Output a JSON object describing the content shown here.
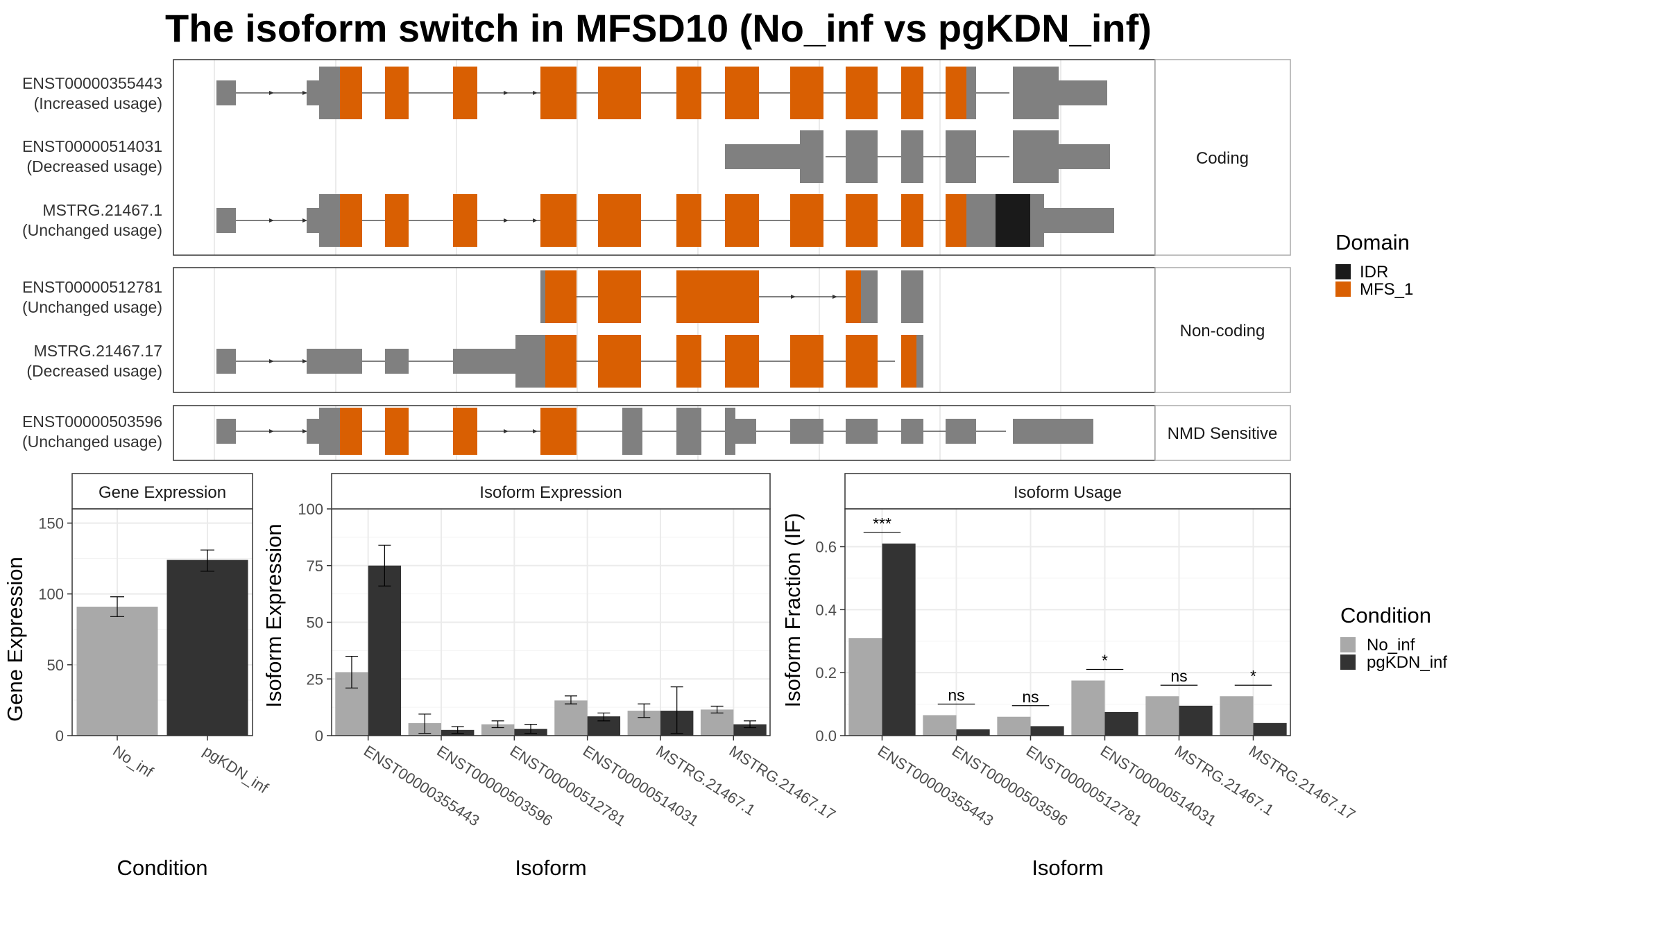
{
  "title": "The isoform switch in MFSD10 (No_inf vs pgKDN_inf)",
  "colors": {
    "exon": "#808080",
    "mfs": "#d95f02",
    "idr": "#1a1a1a",
    "no_inf": "#a9a9a9",
    "pgkdn": "#333333",
    "frame": "#333333",
    "grid": "#ebebeb",
    "strip_bg": "#ffffff"
  },
  "structure": {
    "groups": [
      "Coding",
      "Non-coding",
      "NMD Sensitive"
    ],
    "isoforms": [
      {
        "id": "ENST00000355443",
        "usage": "(Increased usage)",
        "group": 0
      },
      {
        "id": "ENST00000514031",
        "usage": "(Decreased usage)",
        "group": 0
      },
      {
        "id": "MSTRG.21467.1",
        "usage": "(Unchanged usage)",
        "group": 0
      },
      {
        "id": "ENST00000512781",
        "usage": "(Unchanged usage)",
        "group": 1
      },
      {
        "id": "MSTRG.21467.17",
        "usage": "(Decreased usage)",
        "group": 1
      },
      {
        "id": "ENST00000503596",
        "usage": "(Unchanged usage)",
        "group": 2
      }
    ],
    "legend": {
      "title": "Domain",
      "items": [
        {
          "label": "IDR",
          "color": "#1a1a1a"
        },
        {
          "label": "MFS_1",
          "color": "#d95f02"
        }
      ]
    }
  },
  "chart_data": [
    {
      "type": "bar",
      "title": "Gene Expression",
      "xlabel": "Condition",
      "ylabel": "Gene Expression",
      "ylim": [
        0,
        160
      ],
      "yticks": [
        0,
        50,
        100,
        150
      ],
      "categories": [
        "No_inf",
        "pgKDN_inf"
      ],
      "values": [
        91,
        124
      ],
      "errors": [
        [
          84,
          98
        ],
        [
          116,
          131
        ]
      ]
    },
    {
      "type": "bar",
      "title": "Isoform Expression",
      "xlabel": "Isoform",
      "ylabel": "Isoform Expression",
      "ylim": [
        0,
        100
      ],
      "yticks": [
        0,
        25,
        50,
        75,
        100
      ],
      "categories": [
        "ENST00000355443",
        "ENST00000503596",
        "ENST00000512781",
        "ENST00000514031",
        "MSTRG.21467.1",
        "MSTRG.21467.17"
      ],
      "series": [
        {
          "name": "No_inf",
          "values": [
            28,
            5.5,
            5,
            15.5,
            11,
            11.5
          ],
          "errors": [
            [
              21,
              35
            ],
            [
              1,
              9.5
            ],
            [
              3.5,
              6.5
            ],
            [
              14,
              17.5
            ],
            [
              8,
              14
            ],
            [
              10,
              13
            ]
          ]
        },
        {
          "name": "pgKDN_inf",
          "values": [
            75,
            2.5,
            3,
            8.5,
            11,
            5
          ],
          "errors": [
            [
              66,
              84
            ],
            [
              1,
              4
            ],
            [
              1,
              5
            ],
            [
              6.5,
              10
            ],
            [
              1,
              21.5
            ],
            [
              3.5,
              6.5
            ]
          ]
        }
      ]
    },
    {
      "type": "bar",
      "title": "Isoform Usage",
      "xlabel": "Isoform",
      "ylabel": "Isoform Fraction (IF)",
      "ylim": [
        0,
        0.72
      ],
      "yticks": [
        "0.0",
        "0.2",
        "0.4",
        "0.6"
      ],
      "categories": [
        "ENST00000355443",
        "ENST00000503596",
        "ENST00000512781",
        "ENST00000514031",
        "MSTRG.21467.1",
        "MSTRG.21467.17"
      ],
      "series": [
        {
          "name": "No_inf",
          "values": [
            0.31,
            0.065,
            0.06,
            0.175,
            0.125,
            0.125
          ]
        },
        {
          "name": "pgKDN_inf",
          "values": [
            0.61,
            0.02,
            0.03,
            0.075,
            0.095,
            0.04
          ]
        }
      ],
      "significance": [
        "***",
        "ns",
        "ns",
        "*",
        "ns",
        "*"
      ]
    }
  ],
  "condition_legend": {
    "title": "Condition",
    "items": [
      {
        "label": "No_inf",
        "color": "#a9a9a9"
      },
      {
        "label": "pgKDN_inf",
        "color": "#333333"
      }
    ]
  }
}
